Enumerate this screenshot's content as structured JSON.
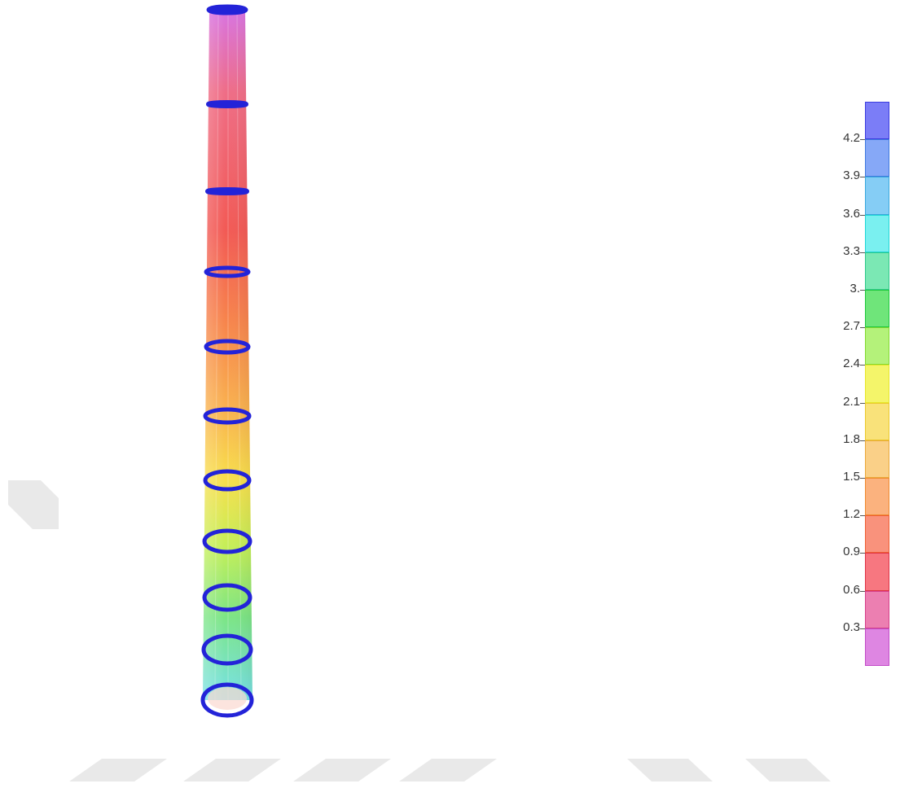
{
  "legend": {
    "labels": [
      "4.2",
      "3.9",
      "3.6",
      "3.3",
      "3.",
      "2.7",
      "2.4",
      "2.1",
      "1.8",
      "1.5",
      "1.2",
      "0.9",
      "0.6",
      "0.3"
    ],
    "colors": [
      "#7b7df7",
      "#86a8f7",
      "#85cdf5",
      "#7af0f0",
      "#7be8b4",
      "#6fe57a",
      "#b4f27a",
      "#f4f56a",
      "#f9e27a",
      "#fad088",
      "#fbb27e",
      "#f9927c",
      "#f77780",
      "#ec7fb1",
      "#de86e2"
    ],
    "borders": [
      "#3b3de0",
      "#3f79e0",
      "#39a9dd",
      "#1fd6d6",
      "#2ec98a",
      "#1ec83d",
      "#82d930",
      "#e6e62a",
      "#ebc92d",
      "#eaa93b",
      "#f08a2f",
      "#ef5f35",
      "#e03346",
      "#d6408a",
      "#c24cc8"
    ]
  },
  "model": {
    "ring_color": "#2323d8",
    "gradient": [
      "#d874e2",
      "#ef6d86",
      "#f25a55",
      "#f7844c",
      "#f9b24f",
      "#f8df4c",
      "#c4ef58",
      "#7ce585",
      "#77e1e8"
    ]
  }
}
